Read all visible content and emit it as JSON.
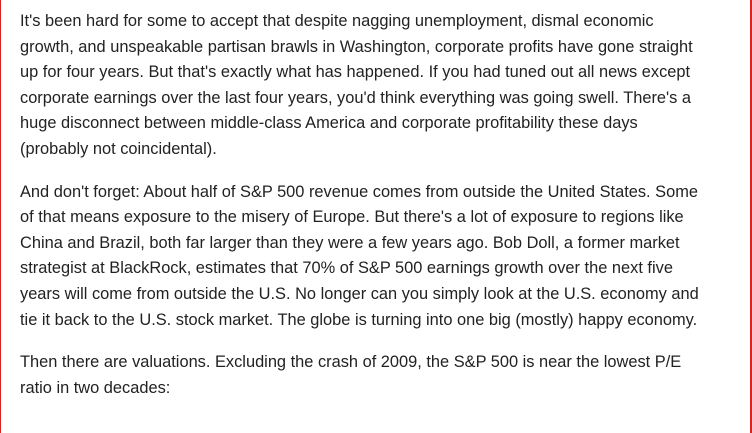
{
  "paragraphs": [
    {
      "lines": [
        "It's been hard for some to accept that despite nagging unemployment, dismal economic",
        "growth, and unspeakable partisan brawls in Washington, corporate profits have gone straight",
        "up for four years. But that's exactly what has happened. If you had tuned out all news except",
        "corporate earnings over the last four years, you'd think everything was going swell. There's a",
        "huge disconnect between middle-class America and corporate profitability these days",
        "(probably not coincidental)."
      ]
    },
    {
      "lines": [
        "And don't forget: About half of S&P 500 revenue comes from outside the United States. Some",
        "of that means exposure to the misery of Europe. But there's a lot of exposure to regions like",
        "China and Brazil, both far larger than they were a few years ago. Bob Doll, a former market",
        "strategist at BlackRock, estimates that 70% of S&P 500 earnings growth over the next five",
        "years will come from outside the U.S. No longer can you simply look at the U.S. economy and",
        "tie it back to the U.S. stock market. The globe is turning into one big (mostly) happy economy."
      ]
    },
    {
      "lines": [
        "Then there are valuations. Excluding the crash of 2009, the S&P 500 is near the lowest P/E",
        "ratio in two decades:"
      ]
    }
  ]
}
